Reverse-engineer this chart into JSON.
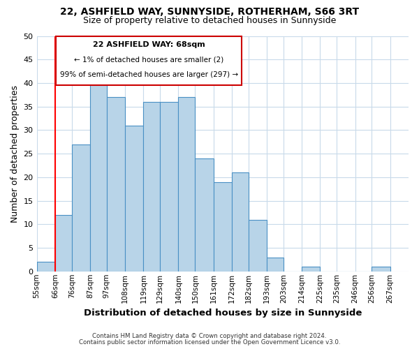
{
  "title": "22, ASHFIELD WAY, SUNNYSIDE, ROTHERHAM, S66 3RT",
  "subtitle": "Size of property relative to detached houses in Sunnyside",
  "xlabel": "Distribution of detached houses by size in Sunnyside",
  "ylabel": "Number of detached properties",
  "bar_left_edges": [
    55,
    66,
    76,
    87,
    97,
    108,
    119,
    129,
    140,
    150,
    161,
    172,
    182,
    193,
    203,
    214,
    225,
    235,
    246,
    256
  ],
  "bar_widths": [
    11,
    10,
    11,
    10,
    11,
    11,
    10,
    11,
    10,
    11,
    11,
    10,
    11,
    10,
    11,
    11,
    10,
    11,
    10,
    11
  ],
  "bar_heights": [
    2,
    12,
    27,
    40,
    37,
    31,
    36,
    36,
    37,
    24,
    19,
    21,
    11,
    3,
    0,
    1,
    0,
    0,
    0,
    1
  ],
  "tick_labels": [
    "55sqm",
    "66sqm",
    "76sqm",
    "87sqm",
    "97sqm",
    "108sqm",
    "119sqm",
    "129sqm",
    "140sqm",
    "150sqm",
    "161sqm",
    "172sqm",
    "182sqm",
    "193sqm",
    "203sqm",
    "214sqm",
    "225sqm",
    "235sqm",
    "246sqm",
    "256sqm",
    "267sqm"
  ],
  "ylim": [
    0,
    50
  ],
  "yticks": [
    0,
    5,
    10,
    15,
    20,
    25,
    30,
    35,
    40,
    45,
    50
  ],
  "bar_color": "#b8d4e8",
  "bar_edge_color": "#4a90c4",
  "annotation_box_title": "22 ASHFIELD WAY: 68sqm",
  "annotation_line1": "← 1% of detached houses are smaller (2)",
  "annotation_line2": "99% of semi-detached houses are larger (297) →",
  "annotation_box_edge_color": "#cc0000",
  "red_line_x": 66,
  "xlim_left": 55,
  "xlim_right": 278,
  "footer1": "Contains HM Land Registry data © Crown copyright and database right 2024.",
  "footer2": "Contains public sector information licensed under the Open Government Licence v3.0."
}
